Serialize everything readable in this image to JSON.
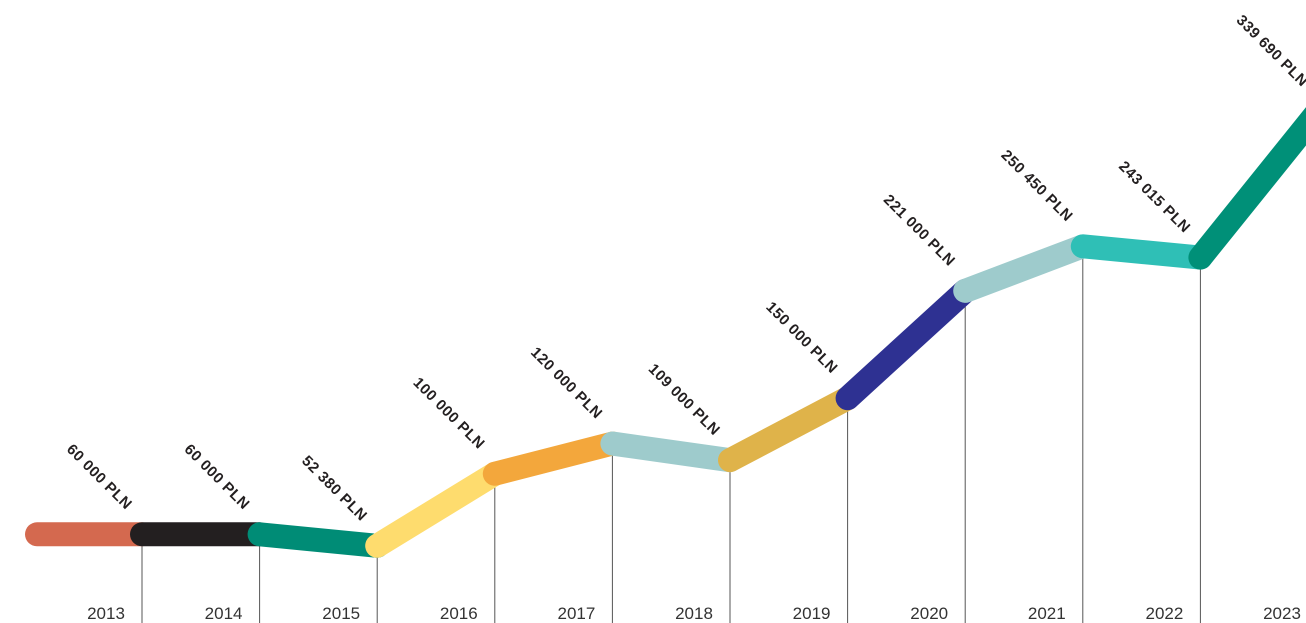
{
  "chart_data": {
    "type": "line",
    "categories": [
      "2013",
      "2014",
      "2015",
      "2016",
      "2017",
      "2018",
      "2019",
      "2020",
      "2021",
      "2022",
      "2023"
    ],
    "values": [
      60000,
      60000,
      52380,
      100000,
      120000,
      109000,
      150000,
      221000,
      250450,
      243015,
      339690
    ],
    "value_labels": [
      "60 000 PLN",
      "60 000 PLN",
      "52 380 PLN",
      "100 000 PLN",
      "120 000 PLN",
      "109 000 PLN",
      "150 000 PLN",
      "221 000 PLN",
      "250 450 PLN",
      "243 015 PLN",
      "339 690 PLN"
    ],
    "colors": [
      "#d4694f",
      "#231f20",
      "#008c76",
      "#fedc6e",
      "#f3a73c",
      "#9ecbcc",
      "#dfb34a",
      "#2e3192",
      "#9ecbcc",
      "#2fbfb6",
      "#009078"
    ]
  }
}
